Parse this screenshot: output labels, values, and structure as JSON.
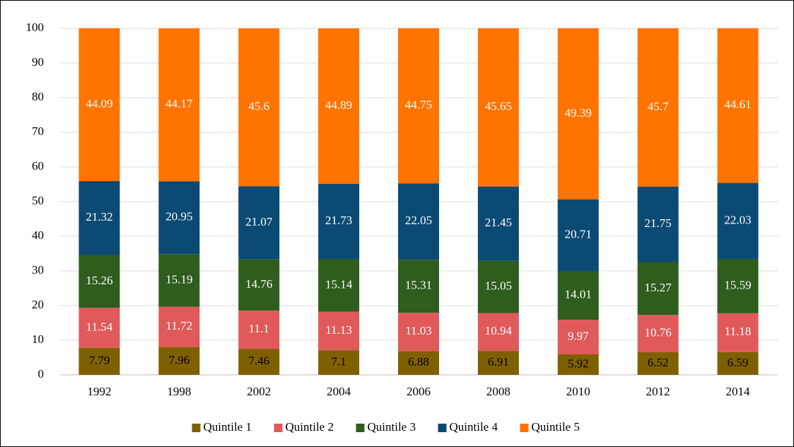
{
  "chart_data": {
    "type": "stacked_bar",
    "categories": [
      "1992",
      "1998",
      "2002",
      "2004",
      "2006",
      "2008",
      "2010",
      "2012",
      "2014"
    ],
    "series": [
      {
        "name": "Quintile 1",
        "color": "#7f6000",
        "values": [
          7.79,
          7.96,
          7.46,
          7.1,
          6.88,
          6.91,
          5.92,
          6.52,
          6.59
        ]
      },
      {
        "name": "Quintile 2",
        "color": "#e05a5a",
        "values": [
          11.54,
          11.72,
          11.1,
          11.13,
          11.03,
          10.94,
          9.97,
          10.76,
          11.18
        ]
      },
      {
        "name": "Quintile 3",
        "color": "#2e5d1e",
        "values": [
          15.26,
          15.19,
          14.76,
          15.14,
          15.31,
          15.05,
          14.01,
          15.27,
          15.59
        ]
      },
      {
        "name": "Quintile 4",
        "color": "#0b4a73",
        "values": [
          21.32,
          20.95,
          21.07,
          21.73,
          22.05,
          21.45,
          20.71,
          21.75,
          22.03
        ]
      },
      {
        "name": "Quintile 5",
        "color": "#ff7300",
        "values": [
          44.09,
          44.17,
          45.6,
          44.89,
          44.75,
          45.65,
          49.39,
          45.7,
          44.61
        ]
      }
    ],
    "ylim": [
      0,
      100
    ],
    "yticks": [
      0,
      10,
      20,
      30,
      40,
      50,
      60,
      70,
      80,
      90,
      100
    ],
    "grid": true,
    "legend": "bottom"
  }
}
